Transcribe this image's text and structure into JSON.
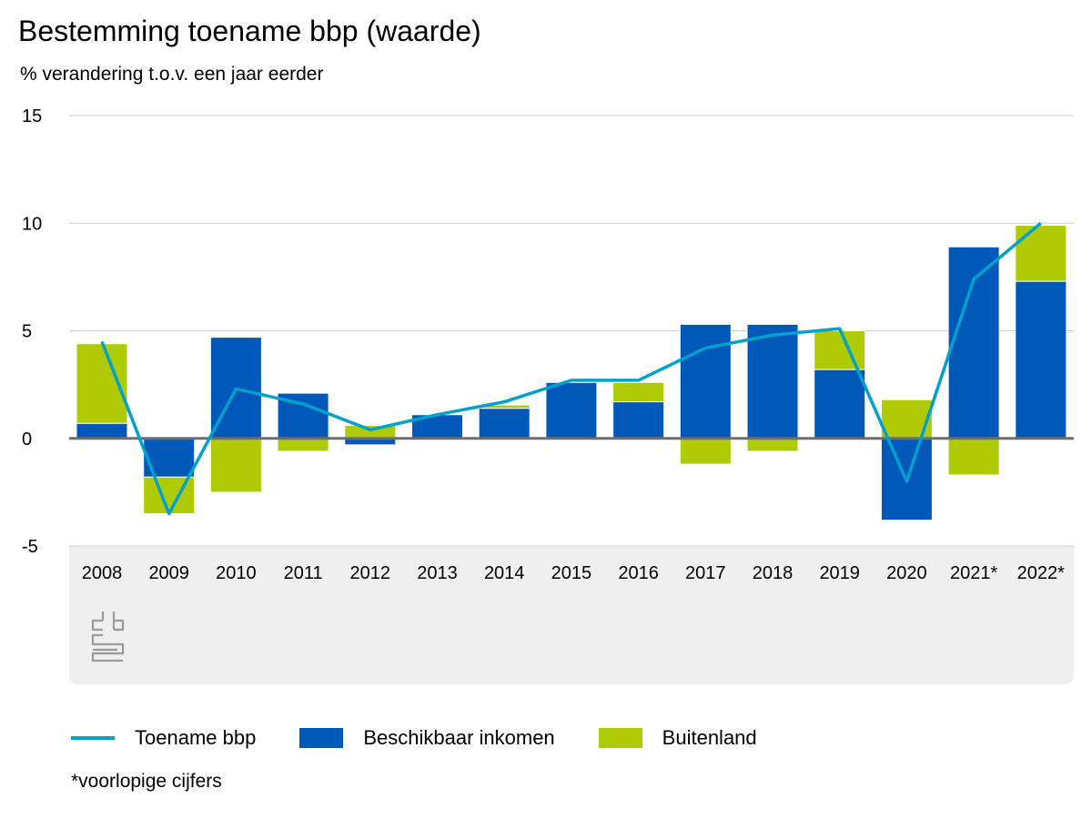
{
  "chart_data": {
    "type": "bar",
    "stacked": true,
    "title": "Bestemming toename bbp (waarde)",
    "subtitle": "% verandering t.o.v. een jaar eerder",
    "categories": [
      "2008",
      "2009",
      "2010",
      "2011",
      "2012",
      "2013",
      "2014",
      "2015",
      "2016",
      "2017",
      "2018",
      "2019",
      "2020",
      "2021*",
      "2022*"
    ],
    "ylim": [
      -5,
      15
    ],
    "yticks": [
      15,
      10,
      5,
      0,
      -5
    ],
    "grid": true,
    "series": [
      {
        "name": "Beschikbaar inkomen",
        "kind": "bar",
        "color": "#0058b8",
        "values": [
          0.7,
          -1.8,
          4.7,
          2.1,
          -0.3,
          1.1,
          1.4,
          2.6,
          1.7,
          5.3,
          5.3,
          3.2,
          -3.8,
          8.9,
          7.3
        ]
      },
      {
        "name": "Buitenland",
        "kind": "bar",
        "color": "#afcb05",
        "values": [
          3.7,
          -1.7,
          -2.5,
          -0.6,
          0.6,
          0.0,
          0.15,
          0.0,
          0.9,
          -1.2,
          -0.6,
          1.8,
          1.8,
          -1.7,
          2.6
        ]
      },
      {
        "name": "Toename bbp",
        "kind": "line",
        "color": "#00a1cd",
        "values": [
          4.5,
          -3.5,
          2.3,
          1.6,
          0.4,
          1.1,
          1.7,
          2.7,
          2.7,
          4.2,
          4.8,
          5.1,
          -2.0,
          7.4,
          10.0
        ]
      }
    ],
    "legend_position": "bottom-left"
  },
  "footnote": "*voorlopige cijfers",
  "logo": "cbs-logo"
}
